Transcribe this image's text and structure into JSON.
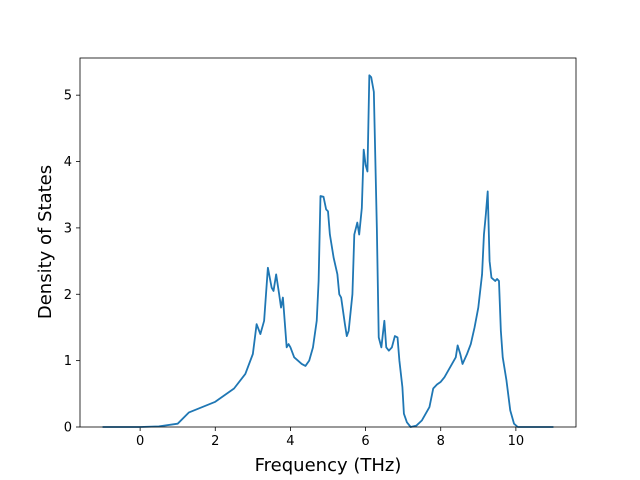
{
  "chart_data": {
    "type": "line",
    "x_label": "Frequency (THz)",
    "y_label": "Density of States",
    "xlim": [
      -1.6,
      11.6
    ],
    "ylim": [
      0,
      5.56
    ],
    "xticks": [
      0,
      2,
      4,
      6,
      8,
      10
    ],
    "yticks": [
      0,
      1,
      2,
      3,
      4,
      5
    ],
    "grid": false,
    "series": [
      {
        "color": "#1f77b4",
        "x": [
          -1,
          0,
          0.5,
          1,
          1.3,
          2,
          2.5,
          2.8,
          3.0,
          3.1,
          3.2,
          3.3,
          3.4,
          3.5,
          3.55,
          3.62,
          3.7,
          3.75,
          3.8,
          3.9,
          3.95,
          4.0,
          4.1,
          4.3,
          4.4,
          4.5,
          4.6,
          4.7,
          4.75,
          4.8,
          4.88,
          4.95,
          5.0,
          5.05,
          5.15,
          5.25,
          5.3,
          5.35,
          5.45,
          5.5,
          5.55,
          5.65,
          5.7,
          5.78,
          5.83,
          5.9,
          5.95,
          6.0,
          6.05,
          6.1,
          6.15,
          6.22,
          6.3,
          6.35,
          6.42,
          6.5,
          6.55,
          6.62,
          6.7,
          6.78,
          6.85,
          6.9,
          6.98,
          7.02,
          7.1,
          7.2,
          7.35,
          7.5,
          7.7,
          7.8,
          7.9,
          8.0,
          8.1,
          8.2,
          8.3,
          8.4,
          8.45,
          8.52,
          8.58,
          8.7,
          8.8,
          8.9,
          9.0,
          9.1,
          9.15,
          9.2,
          9.25,
          9.3,
          9.35,
          9.45,
          9.5,
          9.55,
          9.6,
          9.65,
          9.75,
          9.85,
          9.95,
          10.05,
          11
        ],
        "values": [
          0,
          0,
          0.01,
          0.05,
          0.22,
          0.38,
          0.58,
          0.8,
          1.1,
          1.55,
          1.4,
          1.6,
          2.4,
          2.1,
          2.05,
          2.3,
          2.0,
          1.8,
          1.95,
          1.2,
          1.25,
          1.2,
          1.05,
          0.95,
          0.92,
          1.0,
          1.2,
          1.6,
          2.2,
          3.48,
          3.47,
          3.28,
          3.25,
          2.9,
          2.55,
          2.3,
          2.0,
          1.95,
          1.55,
          1.37,
          1.45,
          2.0,
          2.9,
          3.08,
          2.9,
          3.3,
          4.18,
          3.95,
          3.85,
          5.3,
          5.27,
          5.05,
          3.0,
          1.35,
          1.2,
          1.6,
          1.2,
          1.15,
          1.2,
          1.37,
          1.35,
          1.0,
          0.6,
          0.2,
          0.07,
          0,
          0.02,
          0.1,
          0.3,
          0.58,
          0.64,
          0.68,
          0.75,
          0.85,
          0.95,
          1.05,
          1.23,
          1.1,
          0.95,
          1.1,
          1.25,
          1.5,
          1.8,
          2.3,
          2.9,
          3.2,
          3.55,
          2.5,
          2.25,
          2.2,
          2.23,
          2.2,
          1.45,
          1.05,
          0.7,
          0.25,
          0.05,
          0,
          0
        ]
      }
    ]
  }
}
